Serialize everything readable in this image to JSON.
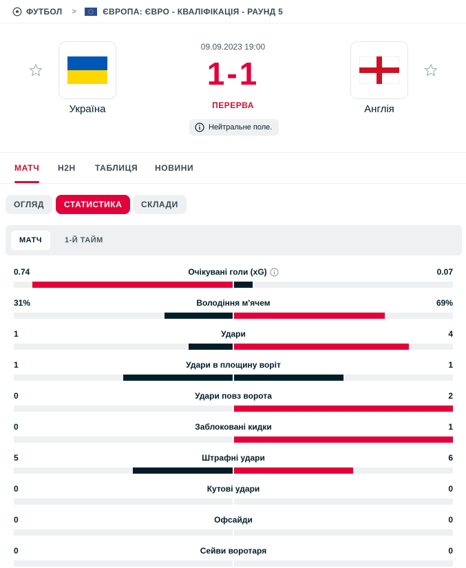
{
  "breadcrumb": {
    "sport": "ФУТБОЛ",
    "competition": "ЄВРОПА: ЄВРО - КВАЛІФІКАЦІЯ - РАУНД 5"
  },
  "match": {
    "datetime": "09.09.2023 19:00",
    "score": "1-1",
    "status": "ПЕРЕРВА",
    "info": "Нейтральне поле.",
    "home": {
      "name": "Україна",
      "flag_colors": [
        "#0057b7",
        "#ffd700"
      ]
    },
    "away": {
      "name": "Англія",
      "flag_colors": [
        "#ffffff",
        "#ce1124"
      ]
    }
  },
  "tabs": [
    {
      "label": "МАТЧ",
      "active": true
    },
    {
      "label": "H2H",
      "active": false
    },
    {
      "label": "ТАБЛИЦЯ",
      "active": false
    },
    {
      "label": "НОВИНИ",
      "active": false
    }
  ],
  "subtabs": [
    {
      "label": "ОГЛЯД",
      "active": false
    },
    {
      "label": "СТАТИСТИКА",
      "active": true
    },
    {
      "label": "СКЛАДИ",
      "active": false
    }
  ],
  "periods": [
    {
      "label": "МАТЧ",
      "active": true
    },
    {
      "label": "1-Й ТАЙМ",
      "active": false
    }
  ],
  "stats": [
    {
      "category": "Очікувані голи (xG)",
      "info_icon": true,
      "home": "0.74",
      "away": "0.07",
      "home_share": 0.914,
      "away_share": 0.086,
      "leader": "home"
    },
    {
      "category": "Володіння м'ячем",
      "home": "31%",
      "away": "69%",
      "home_share": 0.31,
      "away_share": 0.69,
      "leader": "away"
    },
    {
      "category": "Удари",
      "home": "1",
      "away": "4",
      "home_share": 0.2,
      "away_share": 0.8,
      "leader": "away"
    },
    {
      "category": "Удари в площину воріт",
      "home": "1",
      "away": "1",
      "home_share": 0.5,
      "away_share": 0.5,
      "leader": "none"
    },
    {
      "category": "Удари повз ворота",
      "home": "0",
      "away": "2",
      "home_share": 0,
      "away_share": 1,
      "leader": "away"
    },
    {
      "category": "Заблоковані кидки",
      "home": "0",
      "away": "1",
      "home_share": 0,
      "away_share": 1,
      "leader": "away"
    },
    {
      "category": "Штрафні удари",
      "home": "5",
      "away": "6",
      "home_share": 0.455,
      "away_share": 0.545,
      "leader": "away"
    },
    {
      "category": "Кутові удари",
      "home": "0",
      "away": "0",
      "home_share": 0,
      "away_share": 0,
      "leader": "none"
    },
    {
      "category": "Офсайди",
      "home": "0",
      "away": "0",
      "home_share": 0,
      "away_share": 0,
      "leader": "none"
    },
    {
      "category": "Сейви воротаря",
      "home": "0",
      "away": "0",
      "home_share": 0,
      "away_share": 0,
      "leader": "none"
    }
  ],
  "colors": {
    "accent": "#e4003a",
    "dark": "#001e28",
    "track": "#eef0f1"
  }
}
